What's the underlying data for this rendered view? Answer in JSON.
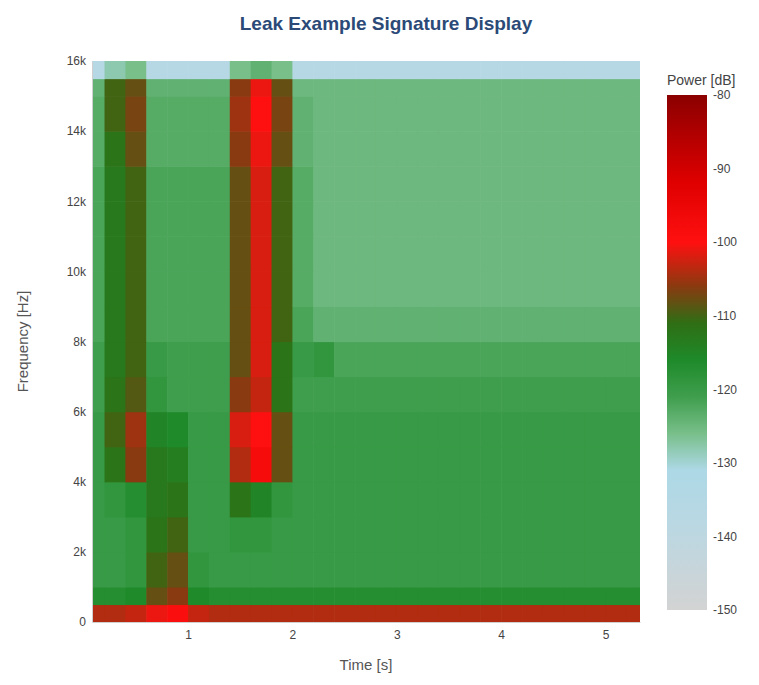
{
  "chart_data": {
    "type": "heatmap",
    "title": "Leak Example Signature Display",
    "xlabel": "Time [s]",
    "ylabel": "Frequency [Hz]",
    "zlabel": "Power [dB]",
    "xlim": [
      0.08,
      5.33
    ],
    "ylim": [
      0,
      16000
    ],
    "zlim": [
      -150,
      -80
    ],
    "xticks": [
      1,
      2,
      3,
      4,
      5
    ],
    "yticks": [
      0,
      {
        "value": 2000,
        "label": "2k"
      },
      {
        "value": 4000,
        "label": "4k"
      },
      {
        "value": 6000,
        "label": "6k"
      },
      {
        "value": 8000,
        "label": "8k"
      },
      {
        "value": 10000,
        "label": "10k"
      },
      {
        "value": 12000,
        "label": "12k"
      },
      {
        "value": 14000,
        "label": "14k"
      },
      {
        "value": 16000,
        "label": "16k"
      }
    ],
    "zticks": [
      -150,
      -140,
      -130,
      -120,
      -110,
      -100,
      -90,
      -80
    ],
    "x_bins": [
      0.08,
      0.2,
      0.4,
      0.6,
      0.8,
      1.0,
      1.2,
      1.4,
      1.6,
      1.8,
      2.0,
      2.2,
      2.4,
      2.6,
      2.8,
      3.0,
      3.2,
      3.4,
      3.6,
      3.8,
      4.0,
      4.2,
      4.4,
      4.6,
      4.8,
      5.0,
      5.2,
      5.33
    ],
    "y_bins": [
      0,
      500,
      1000,
      2000,
      3000,
      4000,
      5000,
      6000,
      7000,
      8000,
      9000,
      10000,
      11000,
      12000,
      13000,
      14000,
      15000,
      15500,
      16000
    ],
    "z": [
      [
        -104,
        -104,
        -103,
        -101,
        -99,
        -103,
        -104,
        -104,
        -104,
        -104,
        -104,
        -104,
        -104,
        -104,
        -104,
        -104,
        -104,
        -104,
        -104,
        -104,
        -104,
        -104,
        -104,
        -104,
        -104,
        -104,
        -104
      ],
      [
        -117,
        -117,
        -116,
        -108,
        -106,
        -116,
        -117,
        -117,
        -117,
        -117,
        -117,
        -117,
        -117,
        -117,
        -117,
        -117,
        -117,
        -117,
        -117,
        -117,
        -117,
        -117,
        -117,
        -117,
        -117,
        -117,
        -117
      ],
      [
        -120,
        -120,
        -119,
        -110,
        -108,
        -119,
        -120,
        -120,
        -120,
        -120,
        -120,
        -120,
        -120,
        -120,
        -120,
        -120,
        -120,
        -120,
        -120,
        -120,
        -120,
        -120,
        -120,
        -120,
        -120,
        -120,
        -120
      ],
      [
        -120,
        -120,
        -119,
        -112,
        -110,
        -120,
        -120,
        -119,
        -119,
        -120,
        -120,
        -120,
        -120,
        -120,
        -120,
        -120,
        -120,
        -120,
        -120,
        -120,
        -120,
        -120,
        -120,
        -120,
        -120,
        -120,
        -120
      ],
      [
        -120,
        -119,
        -117,
        -113,
        -112,
        -120,
        -120,
        -112,
        -115,
        -119,
        -120,
        -120,
        -120,
        -120,
        -120,
        -120,
        -120,
        -120,
        -120,
        -120,
        -120,
        -120,
        -120,
        -120,
        -120,
        -120,
        -120
      ],
      [
        -120,
        -112,
        -106,
        -113,
        -114,
        -120,
        -120,
        -104,
        -98,
        -108,
        -120,
        -120,
        -120,
        -120,
        -120,
        -120,
        -120,
        -120,
        -120,
        -120,
        -120,
        -120,
        -120,
        -120,
        -120,
        -120,
        -120
      ],
      [
        -120,
        -110,
        -105,
        -115,
        -116,
        -120,
        -120,
        -102,
        -100,
        -108,
        -120,
        -120,
        -120,
        -120,
        -120,
        -120,
        -120,
        -120,
        -120,
        -120,
        -120,
        -120,
        -120,
        -120,
        -120,
        -120,
        -120
      ],
      [
        -121,
        -112,
        -109,
        -119,
        -121,
        -121,
        -121,
        -106,
        -103,
        -112,
        -121,
        -121,
        -121,
        -121,
        -121,
        -121,
        -121,
        -121,
        -121,
        -121,
        -121,
        -121,
        -121,
        -121,
        -121,
        -121,
        -121
      ],
      [
        -121,
        -113,
        -110,
        -120,
        -121,
        -121,
        -121,
        -108,
        -102,
        -112,
        -120,
        -119,
        -122,
        -122,
        -122,
        -122,
        -122,
        -122,
        -122,
        -122,
        -122,
        -122,
        -122,
        -122,
        -122,
        -122,
        -122
      ],
      [
        -122,
        -113,
        -110,
        -122,
        -122,
        -122,
        -122,
        -108,
        -102,
        -110,
        -122,
        -124,
        -124,
        -124,
        -124,
        -124,
        -124,
        -124,
        -124,
        -124,
        -124,
        -124,
        -124,
        -124,
        -124,
        -124,
        -124
      ],
      [
        -122,
        -113,
        -110,
        -122,
        -122,
        -122,
        -122,
        -108,
        -102,
        -110,
        -123,
        -125,
        -125,
        -125,
        -125,
        -125,
        -125,
        -125,
        -125,
        -125,
        -125,
        -125,
        -125,
        -125,
        -125,
        -125,
        -125
      ],
      [
        -122,
        -113,
        -110,
        -122,
        -122,
        -122,
        -122,
        -108,
        -102,
        -110,
        -123,
        -125,
        -125,
        -125,
        -125,
        -125,
        -125,
        -125,
        -125,
        -125,
        -125,
        -125,
        -125,
        -125,
        -125,
        -125,
        -125
      ],
      [
        -122,
        -113,
        -110,
        -122,
        -122,
        -122,
        -122,
        -108,
        -102,
        -110,
        -123,
        -125,
        -125,
        -125,
        -125,
        -125,
        -125,
        -125,
        -125,
        -125,
        -125,
        -125,
        -125,
        -125,
        -125,
        -125,
        -125
      ],
      [
        -122,
        -113,
        -110,
        -122,
        -122,
        -122,
        -122,
        -108,
        -102,
        -110,
        -123,
        -125,
        -125,
        -125,
        -125,
        -125,
        -125,
        -125,
        -125,
        -125,
        -125,
        -125,
        -125,
        -125,
        -125,
        -125,
        -125
      ],
      [
        -123,
        -112,
        -108,
        -123,
        -123,
        -123,
        -123,
        -106,
        -101,
        -108,
        -124,
        -125,
        -125,
        -125,
        -125,
        -125,
        -125,
        -125,
        -125,
        -125,
        -125,
        -125,
        -125,
        -125,
        -125,
        -125,
        -125
      ],
      [
        -123,
        -110,
        -107,
        -123,
        -123,
        -123,
        -123,
        -105,
        -100,
        -107,
        -124,
        -125,
        -125,
        -125,
        -125,
        -125,
        -125,
        -125,
        -125,
        -125,
        -125,
        -125,
        -125,
        -125,
        -125,
        -125,
        -125
      ],
      [
        -124,
        -110,
        -108,
        -124,
        -124,
        -124,
        -124,
        -106,
        -101,
        -108,
        -125,
        -125,
        -125,
        -125,
        -125,
        -125,
        -125,
        -125,
        -125,
        -125,
        -125,
        -125,
        -125,
        -125,
        -125,
        -125,
        -125
      ],
      [
        -136,
        -128,
        -126,
        -136,
        -136,
        -136,
        -136,
        -126,
        -124,
        -126,
        -136,
        -136,
        -136,
        -136,
        -136,
        -136,
        -136,
        -136,
        -136,
        -136,
        -136,
        -136,
        -136,
        -136,
        -136,
        -136,
        -136
      ]
    ]
  }
}
